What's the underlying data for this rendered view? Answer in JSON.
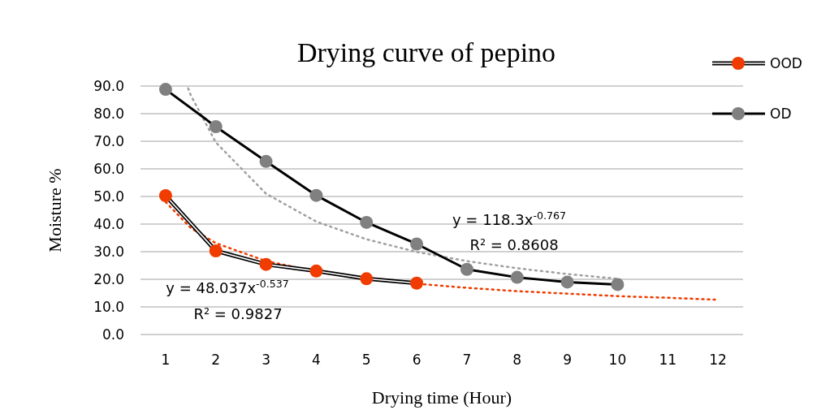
{
  "chart_data": {
    "type": "line",
    "title": "Drying curve of pepino",
    "xlabel": "Drying time (Hour)",
    "ylabel": "Moisture %",
    "xlim": [
      0.5,
      12.5
    ],
    "xticks": [
      1,
      2,
      3,
      4,
      5,
      6,
      7,
      8,
      9,
      10,
      11,
      12
    ],
    "ylim": [
      0,
      90
    ],
    "yticks": [
      {
        "value": 0,
        "label": "0.0"
      },
      {
        "value": 10,
        "label": "10.0"
      },
      {
        "value": 20,
        "label": "20.0"
      },
      {
        "value": 30,
        "label": "30.0"
      },
      {
        "value": 40,
        "label": "40.0"
      },
      {
        "value": 50,
        "label": "50.0"
      },
      {
        "value": 60,
        "label": "60.0"
      },
      {
        "value": 70,
        "label": "70.0"
      },
      {
        "value": 80,
        "label": "80.0"
      },
      {
        "value": 90,
        "label": "90.0"
      }
    ],
    "grid": "y",
    "legend": "top right",
    "marker": "circle",
    "line_style": "solid",
    "series": [
      {
        "name": "OOD",
        "color": "#f03c00",
        "x": [
          1,
          2,
          3,
          4,
          5,
          6
        ],
        "values": [
          50.3,
          30.3,
          25.4,
          23.0,
          20.2,
          18.6
        ]
      },
      {
        "name": "OD",
        "color": "#808080",
        "x": [
          1,
          2,
          3,
          4,
          5,
          6,
          7,
          8,
          9,
          10
        ],
        "values": [
          88.8,
          75.3,
          62.7,
          50.4,
          40.6,
          32.8,
          23.6,
          20.7,
          19.0,
          18.1
        ]
      },
      {
        "type": "line",
        "color": "#f03c00",
        "marker": "none",
        "line_style": "dotted",
        "x": [
          1,
          1.5,
          2,
          3,
          4,
          5,
          6,
          7,
          8,
          9,
          10,
          11,
          12
        ],
        "values": [
          48.0,
          38.6,
          33.1,
          26.6,
          22.8,
          20.2,
          18.4,
          16.9,
          15.7,
          14.8,
          13.9,
          13.3,
          12.6
        ]
      },
      {
        "type": "line",
        "color": "#a0a0a0",
        "marker": "none",
        "line_style": "dotted",
        "x": [
          1.45,
          1.5,
          2,
          3,
          4,
          5,
          6,
          7,
          8,
          9,
          10
        ],
        "values": [
          89.2,
          86.7,
          69.6,
          51.0,
          40.9,
          34.5,
          29.9,
          26.6,
          24.0,
          21.9,
          20.2
        ]
      }
    ],
    "annotations": [
      "y = 118.3x$^{-0.767}$",
      "R² = 0.8608",
      "y = 48.037x$^{-0.537}$",
      "R² = 0.9827"
    ]
  }
}
